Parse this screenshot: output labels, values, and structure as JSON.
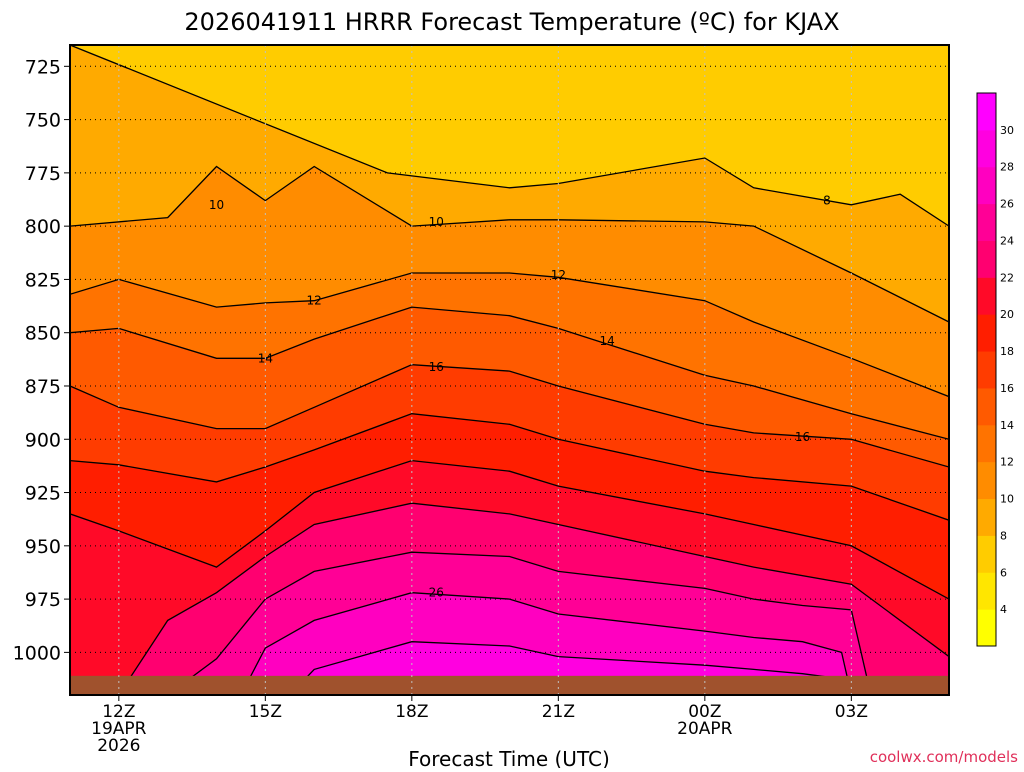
{
  "chart_data": {
    "type": "contour",
    "title": "2026041911 HRRR Forecast Temperature (ºC) for KJAX",
    "xlabel": "Forecast Time (UTC)",
    "ylabel": "",
    "credit": "coolwx.com/models",
    "x_hours": [
      0,
      1,
      2,
      3,
      4,
      5,
      6,
      7,
      8,
      9,
      10,
      11,
      12,
      13,
      14,
      15,
      16,
      17,
      18
    ],
    "xlim": [
      -1,
      17
    ],
    "ylim": [
      715,
      1020
    ],
    "x_ticks": [
      {
        "hour": 0,
        "lines": [
          "12Z",
          "19APR",
          "2026"
        ]
      },
      {
        "hour": 3,
        "lines": [
          "15Z"
        ]
      },
      {
        "hour": 6,
        "lines": [
          "18Z"
        ]
      },
      {
        "hour": 9,
        "lines": [
          "21Z"
        ]
      },
      {
        "hour": 12,
        "lines": [
          "00Z",
          "20APR"
        ]
      },
      {
        "hour": 15,
        "lines": [
          "03Z"
        ]
      }
    ],
    "y_ticks": [
      725,
      750,
      775,
      800,
      825,
      850,
      875,
      900,
      925,
      950,
      975,
      1000
    ],
    "contour_levels": [
      8,
      10,
      12,
      14,
      16,
      18,
      20,
      22,
      24,
      26,
      28
    ],
    "contours": [
      {
        "level": 8,
        "hour": [
          -1,
          5.5,
          8,
          9,
          12,
          13,
          15,
          16,
          17
        ],
        "pressure": [
          715,
          775,
          782,
          780,
          768,
          782,
          790,
          785,
          800
        ]
      },
      {
        "level": 10,
        "hour": [
          -1,
          1,
          2,
          3,
          4,
          6,
          8,
          9,
          12,
          13,
          15,
          17
        ],
        "pressure": [
          800,
          796,
          772,
          788,
          772,
          800,
          797,
          797,
          798,
          800,
          822,
          845
        ]
      },
      {
        "level": 12,
        "hour": [
          -1,
          0,
          2,
          3,
          4,
          6,
          8,
          9,
          12,
          13,
          15,
          17
        ],
        "pressure": [
          832,
          825,
          838,
          836,
          835,
          822,
          822,
          824,
          835,
          845,
          862,
          880
        ]
      },
      {
        "level": 14,
        "hour": [
          -1,
          0,
          2,
          3,
          4,
          6,
          8,
          9,
          12,
          13,
          15,
          17
        ],
        "pressure": [
          850,
          848,
          862,
          862,
          853,
          838,
          842,
          848,
          870,
          875,
          888,
          900
        ]
      },
      {
        "level": 16,
        "hour": [
          -1,
          0,
          2,
          3,
          4,
          6,
          8,
          9,
          12,
          13,
          15,
          17
        ],
        "pressure": [
          875,
          885,
          895,
          895,
          885,
          865,
          868,
          875,
          893,
          897,
          900,
          913
        ]
      },
      {
        "level": 18,
        "hour": [
          -1,
          0,
          2,
          3,
          4,
          6,
          8,
          9,
          12,
          13,
          15,
          17
        ],
        "pressure": [
          910,
          912,
          920,
          913,
          905,
          888,
          893,
          900,
          915,
          918,
          922,
          938
        ]
      },
      {
        "level": 20,
        "hour": [
          -1,
          0,
          2,
          3,
          4,
          6,
          8,
          9,
          12,
          13,
          15,
          17
        ],
        "pressure": [
          935,
          943,
          960,
          943,
          925,
          910,
          915,
          922,
          935,
          940,
          950,
          975
        ]
      },
      {
        "level": 22,
        "hour": [
          0,
          1,
          2,
          3,
          4,
          6,
          8,
          9,
          12,
          13,
          15,
          17
        ],
        "pressure": [
          1020,
          985,
          972,
          955,
          940,
          930,
          935,
          940,
          955,
          960,
          968,
          1002
        ]
      },
      {
        "level": 24,
        "hour": [
          1,
          2,
          3,
          4,
          6,
          8,
          9,
          12,
          13,
          14,
          15,
          15.4
        ],
        "pressure": [
          1020,
          1003,
          975,
          962,
          953,
          955,
          962,
          970,
          975,
          978,
          980,
          1020
        ]
      },
      {
        "level": 26,
        "hour": [
          2.5,
          3,
          4,
          6,
          8,
          9,
          12,
          13,
          14,
          14.8,
          15
        ],
        "pressure": [
          1020,
          998,
          985,
          972,
          975,
          982,
          990,
          993,
          995,
          1000,
          1020
        ]
      },
      {
        "level": 28,
        "hour": [
          3.5,
          4,
          6,
          8,
          9,
          12,
          13,
          14,
          15
        ],
        "pressure": [
          1020,
          1008,
          995,
          997,
          1002,
          1006,
          1008,
          1010,
          1013
        ]
      }
    ],
    "contour_labels": [
      {
        "level": 8,
        "hour": 14.5,
        "pressure": 788
      },
      {
        "level": 10,
        "hour": 2,
        "pressure": 790
      },
      {
        "level": 10,
        "hour": 6.5,
        "pressure": 798
      },
      {
        "level": 12,
        "hour": 4,
        "pressure": 835
      },
      {
        "level": 12,
        "hour": 9,
        "pressure": 823
      },
      {
        "level": 14,
        "hour": 3,
        "pressure": 862
      },
      {
        "level": 14,
        "hour": 10,
        "pressure": 854
      },
      {
        "level": 16,
        "hour": 6.5,
        "pressure": 866
      },
      {
        "level": 16,
        "hour": 14,
        "pressure": 899
      },
      {
        "level": 26,
        "hour": 6.5,
        "pressure": 972
      }
    ],
    "surface_pressure": {
      "hour": [
        -1,
        17
      ],
      "pressure": [
        1011,
        1011
      ]
    },
    "colorbar": {
      "ticks": [
        4,
        6,
        8,
        10,
        12,
        14,
        16,
        18,
        20,
        22,
        24,
        26,
        28,
        30
      ],
      "colors": [
        "#ffff00",
        "#ffe600",
        "#ffcc00",
        "#ffaa00",
        "#ff8c00",
        "#ff7300",
        "#ff5a00",
        "#ff3c00",
        "#ff1e00",
        "#ff0a28",
        "#ff0070",
        "#ff0096",
        "#ff00c0",
        "#ff00e0",
        "#ff00ff"
      ]
    },
    "colors": {
      "ground": "#a0522d",
      "contour_line": "#000000",
      "grid": "#000000"
    }
  }
}
